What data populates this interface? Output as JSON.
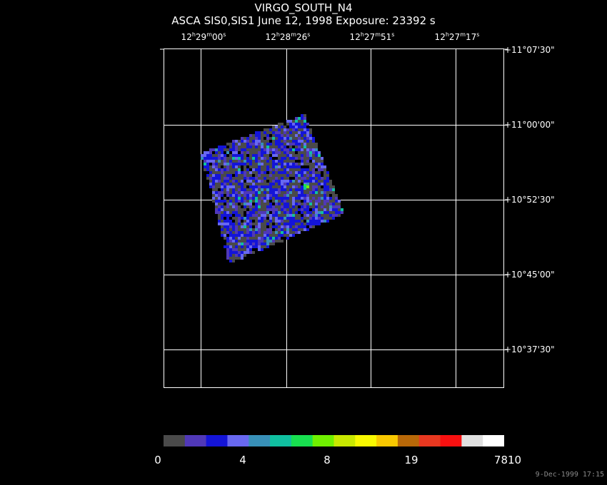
{
  "title": "VIRGO_SOUTH_N4",
  "subtitle": "ASCA SIS0,SIS1 June 12, 1998 Exposure: 23392 s",
  "ra_labels": [
    {
      "h": "12",
      "m": "29",
      "s": "00"
    },
    {
      "h": "12",
      "m": "28",
      "s": "26"
    },
    {
      "h": "12",
      "m": "27",
      "s": "51"
    },
    {
      "h": "12",
      "m": "27",
      "s": "17"
    }
  ],
  "dec_labels": [
    "+11°07'30\"",
    "+11°00'00\"",
    "+10°52'30\"",
    "+10°45'00\"",
    "+10°37'30\""
  ],
  "colorbar": {
    "colors": [
      "#4a4a4a",
      "#5038b8",
      "#1414d8",
      "#6868f0",
      "#3890b8",
      "#10c0a0",
      "#18e050",
      "#70f000",
      "#c8e800",
      "#f8f800",
      "#f8c800",
      "#b86808",
      "#e83820",
      "#f81010",
      "#e0e0e0",
      "#ffffff"
    ],
    "labels": [
      "0",
      "4",
      "8",
      "19",
      "7810"
    ]
  },
  "timestamp": "9-Dec-1999 17:15"
}
